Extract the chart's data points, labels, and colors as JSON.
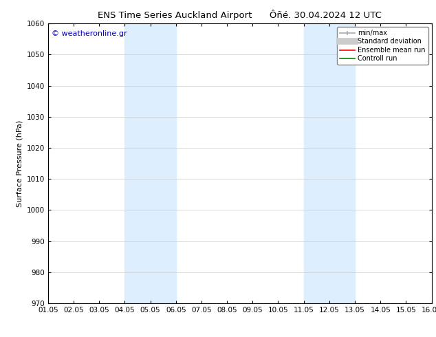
{
  "title_left": "ENS Time Series Auckland Airport",
  "title_right": "Ôñé. 30.04.2024 12 UTC",
  "ylabel": "Surface Pressure (hPa)",
  "xlabel": "",
  "ylim": [
    970,
    1060
  ],
  "yticks": [
    970,
    980,
    990,
    1000,
    1010,
    1020,
    1030,
    1040,
    1050,
    1060
  ],
  "xtick_labels": [
    "01.05",
    "02.05",
    "03.05",
    "04.05",
    "05.05",
    "06.05",
    "07.05",
    "08.05",
    "09.05",
    "10.05",
    "11.05",
    "12.05",
    "13.05",
    "14.05",
    "15.05",
    "16.05"
  ],
  "shaded_regions": [
    {
      "xstart": "04.05",
      "xend": "06.05"
    },
    {
      "xstart": "11.05",
      "xend": "13.05"
    }
  ],
  "shaded_color": "#ddeeff",
  "watermark_text": "© weatheronline.gr",
  "watermark_color": "#0000cc",
  "bg_color": "#ffffff",
  "plot_bg_color": "#ffffff",
  "legend_entries": [
    {
      "label": "min/max",
      "color": "#aaaaaa",
      "lw": 1.5
    },
    {
      "label": "Standard deviation",
      "color": "#cccccc",
      "lw": 6
    },
    {
      "label": "Ensemble mean run",
      "color": "#ff0000",
      "lw": 1.5
    },
    {
      "label": "Controll run",
      "color": "#008800",
      "lw": 1.5
    }
  ],
  "title_fontsize": 9.5,
  "tick_fontsize": 7.5,
  "ylabel_fontsize": 8,
  "watermark_fontsize": 8,
  "legend_fontsize": 7
}
